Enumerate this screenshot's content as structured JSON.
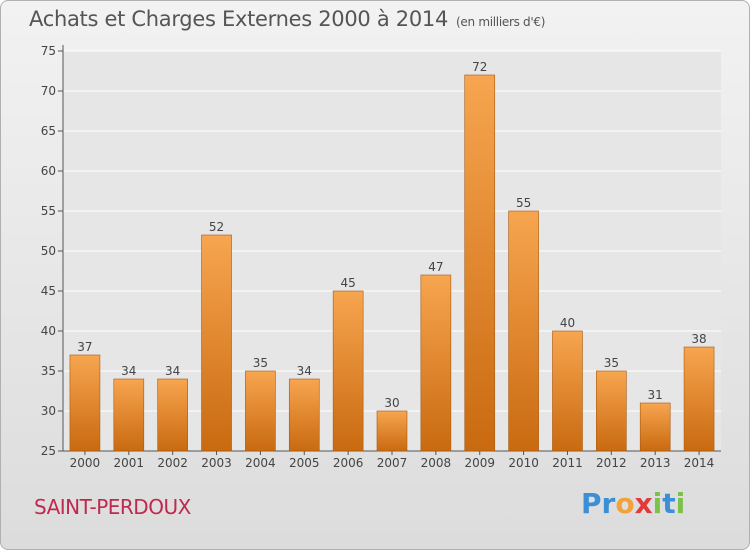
{
  "title": "Achats et Charges Externes 2000 à 2014",
  "unit": "(en milliers d'€)",
  "place": "SAINT-PERDOUX",
  "logo": {
    "letters": [
      "P",
      "r",
      "o",
      "x",
      "i",
      "t",
      "i"
    ],
    "colors": [
      "#3a8fd6",
      "#3a8fd6",
      "#f2a23a",
      "#e23a3a",
      "#7cc24a",
      "#3a8fd6",
      "#7cc24a"
    ]
  },
  "colors": {
    "bar_top": "#f7a550",
    "bar_bottom": "#c96a10",
    "bar_edge": "#a85a10",
    "axis": "#555555",
    "grid": "#ffffff",
    "place": "#c0294e"
  },
  "chart_data": {
    "type": "bar",
    "categories": [
      "2000",
      "2001",
      "2002",
      "2003",
      "2004",
      "2005",
      "2006",
      "2007",
      "2008",
      "2009",
      "2010",
      "2011",
      "2012",
      "2013",
      "2014"
    ],
    "values": [
      37,
      34,
      34,
      52,
      35,
      34,
      45,
      30,
      47,
      72,
      55,
      40,
      35,
      31,
      38
    ],
    "ylim": [
      25,
      75
    ],
    "yticks": [
      25,
      30,
      35,
      40,
      45,
      50,
      55,
      60,
      65,
      70,
      75
    ],
    "grid": true
  }
}
